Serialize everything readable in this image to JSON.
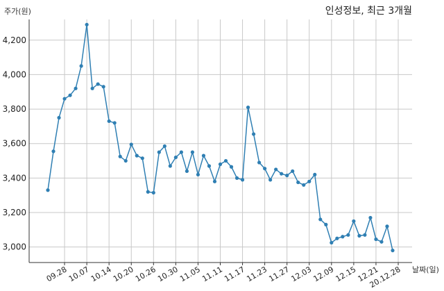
{
  "chart_data": {
    "type": "line",
    "title": "인성정보, 최근 3개월",
    "ylabel": "주가(원)",
    "xlabel": "날짜(일)",
    "ylim": [
      2910,
      4320
    ],
    "yticks": [
      3000,
      3200,
      3400,
      3600,
      3800,
      4000,
      4200
    ],
    "ytick_labels": [
      "3,000",
      "3,200",
      "3,400",
      "3,600",
      "3,800",
      "4,000",
      "4,200"
    ],
    "xtick_labels": [
      "09.28",
      "10.07",
      "10.14",
      "10.20",
      "10.26",
      "10.30",
      "11.05",
      "11.11",
      "11.17",
      "11.23",
      "11.27",
      "12.03",
      "12.09",
      "12.15",
      "12.21",
      "20.12.28"
    ],
    "xtick_index": [
      3,
      7,
      11,
      15,
      19,
      23,
      27,
      31,
      35,
      39,
      43,
      47,
      51,
      55,
      59,
      63
    ],
    "grid": true,
    "color": "#2f7fb3",
    "series": [
      {
        "values": [
          3330,
          3555,
          3750,
          3860,
          3880,
          3920,
          4050,
          4290,
          3920,
          3945,
          3930,
          3730,
          3720,
          3525,
          3500,
          3595,
          3530,
          3515,
          3320,
          3315,
          3550,
          3585,
          3470,
          3520,
          3550,
          3440,
          3550,
          3420,
          3530,
          3470,
          3380,
          3480,
          3500,
          3465,
          3400,
          3390,
          3810,
          3655,
          3490,
          3455,
          3390,
          3450,
          3425,
          3415,
          3440,
          3375,
          3360,
          3380,
          3420,
          3160,
          3130,
          3025,
          3050,
          3060,
          3070,
          3150,
          3065,
          3070,
          3170,
          3045,
          3030,
          3120,
          2980
        ]
      }
    ]
  }
}
